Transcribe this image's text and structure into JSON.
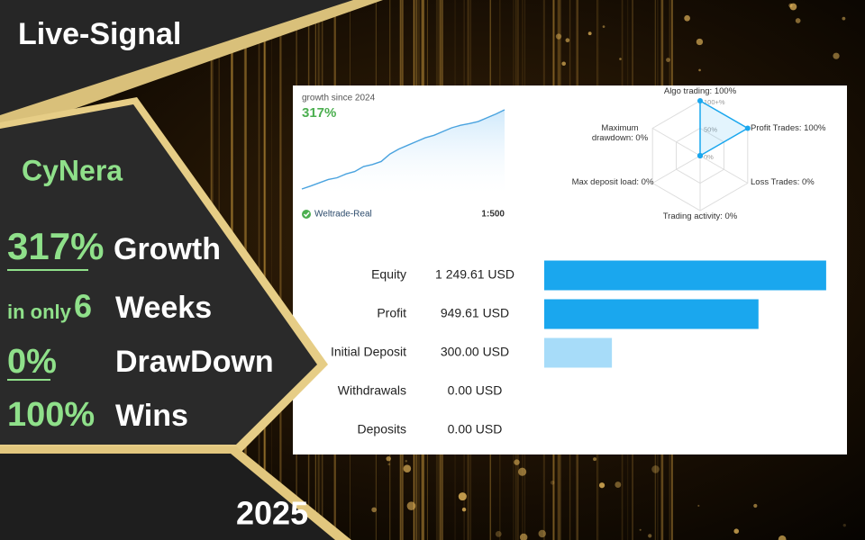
{
  "banner": {
    "title": "Live-Signal",
    "name": "CyNera",
    "year": "2025",
    "stats": [
      {
        "value": "317%",
        "label": "Growth"
      },
      {
        "prefix": "in only",
        "value": "6",
        "label": "Weeks"
      },
      {
        "value": "0%",
        "label": "DrawDown"
      },
      {
        "value": "100%",
        "label": "Wins"
      }
    ]
  },
  "growth_card": {
    "caption": "growth since 2024",
    "value": "317%",
    "broker": "Weltrade-Real",
    "leverage": "1:500",
    "curve": [
      0,
      12,
      25,
      38,
      45,
      60,
      70,
      90,
      98,
      110,
      140,
      160,
      175,
      190,
      205,
      215,
      230,
      245,
      255,
      262,
      270,
      285,
      300,
      317
    ]
  },
  "radar": {
    "type": "radar",
    "rlim": [
      0,
      100
    ],
    "color": "#1aa7ee",
    "axes": [
      {
        "label": "Algo trading: 100%",
        "value": 100
      },
      {
        "label": "Profit Trades: 100%",
        "value": 100
      },
      {
        "label": "Loss Trades: 0%",
        "value": 0
      },
      {
        "label": "Trading activity: 0%",
        "value": 0
      },
      {
        "label": "Max deposit load: 0%",
        "value": 0
      },
      {
        "label": "Maximum drawdown: 0%",
        "value": 0
      }
    ],
    "rings": [
      {
        "value": 100,
        "label": "100+%"
      },
      {
        "value": 50,
        "label": "50%"
      },
      {
        "value": 0,
        "label": "0%"
      }
    ]
  },
  "chart_data": {
    "type": "bar",
    "orientation": "horizontal",
    "categories": [
      "Equity",
      "Profit",
      "Initial Deposit",
      "Withdrawals",
      "Deposits"
    ],
    "values": [
      1249.61,
      949.61,
      300,
      0,
      0
    ],
    "value_labels": [
      "1 249.61 USD",
      "949.61 USD",
      "300.00 USD",
      "0.00 USD",
      "0.00 USD"
    ],
    "colors": [
      "#1aa7ee",
      "#1aa7ee",
      "#a7dcf9",
      "#a7dcf9",
      "#a7dcf9"
    ],
    "xlim": [
      0,
      1250
    ]
  }
}
